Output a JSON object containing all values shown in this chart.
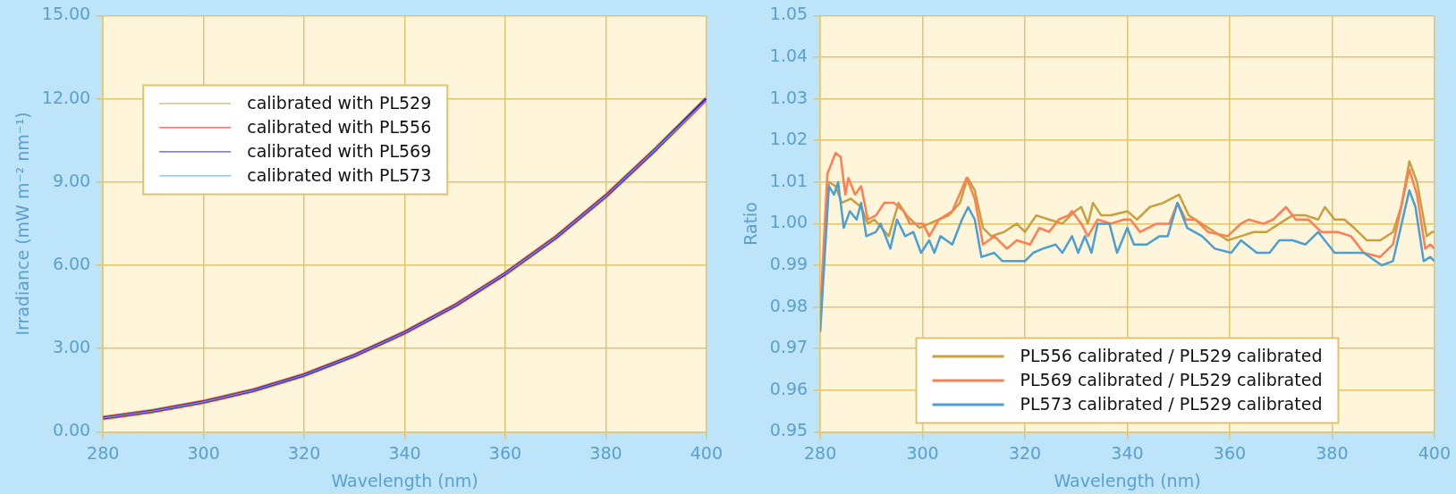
{
  "chart_data": [
    {
      "type": "line",
      "xlabel": "Wavelength (nm)",
      "ylabel": "Irradiance (mW m⁻² nm⁻¹)",
      "x": [
        280,
        290,
        300,
        310,
        320,
        330,
        340,
        350,
        360,
        370,
        380,
        390,
        400
      ],
      "xlim": [
        280,
        400
      ],
      "xticks": [
        280,
        300,
        320,
        340,
        360,
        380,
        400
      ],
      "ylim": [
        0,
        15
      ],
      "yticks": [
        {
          "value": 0,
          "label": "0.00"
        },
        {
          "value": 3,
          "label": "3.00"
        },
        {
          "value": 6,
          "label": "6.00"
        },
        {
          "value": 9,
          "label": "9.00"
        },
        {
          "value": 12,
          "label": "12.00"
        },
        {
          "value": 15,
          "label": "15.00"
        }
      ],
      "grid": true,
      "legend": "top left",
      "marker": "none",
      "line_style": "solid",
      "series": [
        {
          "name": "calibrated with PL529",
          "color": "#c8a040",
          "values": [
            0.5,
            0.75,
            1.08,
            1.5,
            2.05,
            2.75,
            3.58,
            4.55,
            5.7,
            7.0,
            8.5,
            10.2,
            12.0
          ]
        },
        {
          "name": "calibrated with PL556",
          "color": "#ff2020",
          "values": [
            0.5,
            0.75,
            1.08,
            1.5,
            2.05,
            2.75,
            3.58,
            4.55,
            5.7,
            7.0,
            8.5,
            10.2,
            12.0
          ]
        },
        {
          "name": "calibrated with PL569",
          "color": "#2020ff",
          "values": [
            0.5,
            0.75,
            1.08,
            1.5,
            2.05,
            2.75,
            3.58,
            4.55,
            5.7,
            7.0,
            8.5,
            10.2,
            12.0
          ]
        },
        {
          "name": "calibrated with PL573",
          "color": "#60a8d8",
          "values": [
            0.5,
            0.75,
            1.08,
            1.5,
            2.05,
            2.75,
            3.58,
            4.55,
            5.7,
            7.0,
            8.5,
            10.2,
            11.95
          ]
        }
      ]
    },
    {
      "type": "line",
      "xlabel": "Wavelength (nm)",
      "ylabel": "Ratio",
      "xlim": [
        280,
        400
      ],
      "xticks": [
        280,
        300,
        320,
        340,
        360,
        380,
        400
      ],
      "ylim": [
        0.95,
        1.05
      ],
      "yticks": [
        0.95,
        0.96,
        0.97,
        0.98,
        0.99,
        {
          "value": 1,
          "label": "1.00"
        },
        1.01,
        1.02,
        1.03,
        1.04,
        1.05
      ],
      "grid": true,
      "legend": "bottom",
      "marker": "none",
      "line_style": "solid",
      "series": [
        {
          "name": "PL556 calibrated / PL529 calibrated",
          "color": "#c8a040",
          "x": [
            280,
            281.7,
            283,
            284.2,
            286,
            288,
            289.3,
            290.6,
            293.4,
            295.3,
            296.9,
            299.4,
            301.3,
            303.2,
            305.1,
            307.3,
            308.8,
            310.2,
            311.8,
            313.4,
            315.9,
            318.4,
            320,
            322.2,
            324.7,
            327.3,
            329.8,
            331,
            332.3,
            333.3,
            334.9,
            336.8,
            340,
            341.9,
            344.4,
            347,
            350.1,
            352,
            355.8,
            359.6,
            362.2,
            364.7,
            367.2,
            369.7,
            372.3,
            374.8,
            377.3,
            378.6,
            380.5,
            382.4,
            384.3,
            386.8,
            389.4,
            391.9,
            393.5,
            395.1,
            396.6,
            398.5,
            399.5,
            400
          ],
          "values": [
            0.978,
            1.01,
            1.009,
            1.005,
            1.006,
            1.004,
            1.0,
            1.001,
            0.997,
            1.005,
            1.002,
            0.999,
            1.0,
            1.001,
            1.002,
            1.005,
            1.011,
            1.008,
            0.999,
            0.997,
            0.998,
            1.0,
            0.998,
            1.002,
            1.001,
            1.0,
            1.003,
            1.004,
            1.0,
            1.005,
            1.002,
            1.002,
            1.003,
            1.001,
            1.004,
            1.005,
            1.007,
            1.002,
            0.999,
            0.996,
            0.997,
            0.998,
            0.998,
            1.0,
            1.002,
            1.002,
            1.001,
            1.004,
            1.001,
            1.001,
            0.999,
            0.996,
            0.996,
            0.998,
            1.004,
            1.015,
            1.01,
            0.997,
            0.998,
            0.998
          ]
        },
        {
          "name": "PL569 calibrated / PL529 calibrated",
          "color": "#ff7f50",
          "x": [
            280,
            281.4,
            283,
            284,
            284.9,
            285.5,
            286.8,
            288,
            289.3,
            290.9,
            292.5,
            294.4,
            296.3,
            297.5,
            300.1,
            301.3,
            303.2,
            305.8,
            308.6,
            310.2,
            311.8,
            314,
            316.5,
            318.4,
            321,
            322.8,
            324.7,
            326.6,
            328.5,
            329.2,
            331,
            332.3,
            334.2,
            336.8,
            339.3,
            340.6,
            342.5,
            345.7,
            348.2,
            349.8,
            351.4,
            353.3,
            355.8,
            359.6,
            362.2,
            363.7,
            366.6,
            368.5,
            371,
            372.9,
            375.4,
            377.9,
            381.1,
            383.7,
            386.2,
            389.4,
            391.9,
            393.5,
            395.1,
            396.6,
            398.2,
            399.2,
            400
          ],
          "values": [
            0.979,
            1.012,
            1.017,
            1.016,
            1.007,
            1.011,
            1.007,
            1.009,
            1.001,
            1.002,
            1.005,
            1.005,
            1.003,
            1.0,
            1.0,
            0.997,
            1.001,
            1.003,
            1.011,
            1.006,
            0.995,
            0.997,
            0.994,
            0.996,
            0.995,
            0.999,
            0.998,
            1.001,
            1.002,
            1.003,
            1.0,
            0.997,
            1.001,
            1.0,
            1.001,
            1.001,
            0.998,
            1.0,
            1.0,
            1.005,
            1.001,
            1.001,
            0.998,
            0.997,
            1.0,
            1.001,
            1.0,
            1.001,
            1.004,
            1.001,
            1.001,
            0.998,
            0.998,
            0.997,
            0.993,
            0.992,
            0.995,
            1.004,
            1.013,
            1.007,
            0.994,
            0.995,
            0.994
          ]
        },
        {
          "name": "PL573 calibrated / PL529 calibrated",
          "color": "#4a9fd4",
          "x": [
            280,
            281.7,
            282.7,
            283.5,
            284.6,
            285.8,
            287.1,
            288,
            289,
            290.9,
            291.8,
            293.7,
            295,
            296.6,
            298.2,
            299.7,
            301.3,
            302.3,
            303.5,
            305.8,
            307.7,
            308.9,
            310.2,
            311.5,
            314,
            315.6,
            317.8,
            320,
            321.6,
            323.5,
            326,
            327.3,
            329.2,
            330.4,
            331.7,
            333,
            334.2,
            336.5,
            338,
            340,
            341.3,
            343.8,
            346.3,
            347.9,
            349.8,
            351.7,
            354.6,
            357.1,
            360.3,
            362.2,
            365.3,
            367.8,
            369.7,
            372.3,
            374.8,
            377.3,
            380.5,
            383.7,
            386.2,
            389.7,
            391.9,
            395.1,
            396.3,
            397.9,
            399.2,
            400
          ],
          "values": [
            0.974,
            1.009,
            1.007,
            1.01,
            0.999,
            1.003,
            1.001,
            1.005,
            0.997,
            0.998,
            1.0,
            0.994,
            1.001,
            0.997,
            0.998,
            0.993,
            0.996,
            0.993,
            0.997,
            0.995,
            1.001,
            1.004,
            1.001,
            0.992,
            0.993,
            0.991,
            0.991,
            0.991,
            0.993,
            0.994,
            0.995,
            0.993,
            0.997,
            0.993,
            0.997,
            0.993,
            1.0,
            1.0,
            0.993,
            0.999,
            0.995,
            0.995,
            0.997,
            0.997,
            1.005,
            0.999,
            0.997,
            0.994,
            0.993,
            0.996,
            0.993,
            0.993,
            0.996,
            0.996,
            0.995,
            0.998,
            0.993,
            0.993,
            0.993,
            0.99,
            0.991,
            1.008,
            1.004,
            0.991,
            0.992,
            0.991
          ]
        }
      ]
    }
  ]
}
